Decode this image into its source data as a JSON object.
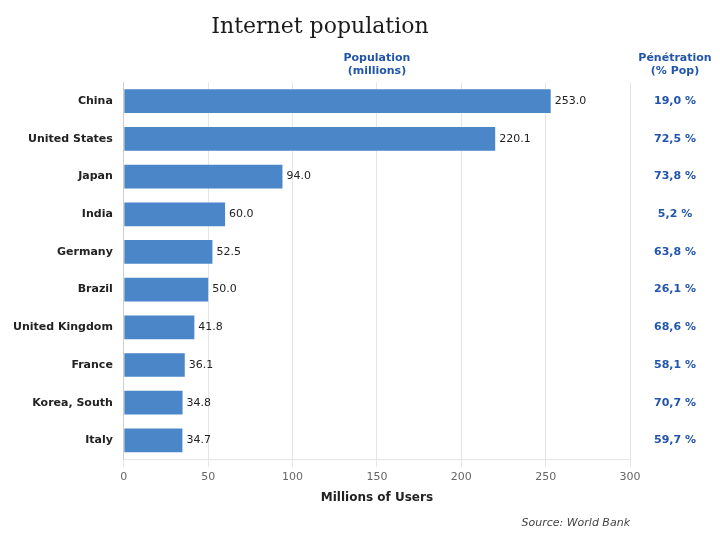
{
  "chart_data": {
    "type": "bar",
    "orientation": "horizontal",
    "title": "Internet population",
    "xlabel": "Millions of Users",
    "categories": [
      "China",
      "United States",
      "Japan",
      "India",
      "Germany",
      "Brazil",
      "United Kingdom",
      "France",
      "Korea, South",
      "Italy"
    ],
    "values": [
      253.0,
      220.1,
      94.0,
      60.0,
      52.5,
      50.0,
      41.8,
      36.1,
      34.8,
      34.7
    ],
    "value_labels": [
      "253.0",
      "220.1",
      "94.0",
      "60.0",
      "52.5",
      "50.0",
      "41.8",
      "36.1",
      "34.8",
      "34.7"
    ],
    "data_labels": true,
    "penetration_labels": [
      "19,0 %",
      "72,5 %",
      "73,8 %",
      "5,2 %",
      "63,8 %",
      "26,1 %",
      "68,6 %",
      "58,1 %",
      "70,7 %",
      "59,7 %"
    ],
    "column_labels": [
      "Population\n(millions)",
      "Pénétration\n(% Pop)"
    ],
    "source": "Source: World Bank",
    "color": "#4a86c8",
    "xlim": [
      0,
      300
    ],
    "xticks": [
      0,
      50,
      100,
      150,
      200,
      250,
      300
    ],
    "grid": true
  }
}
